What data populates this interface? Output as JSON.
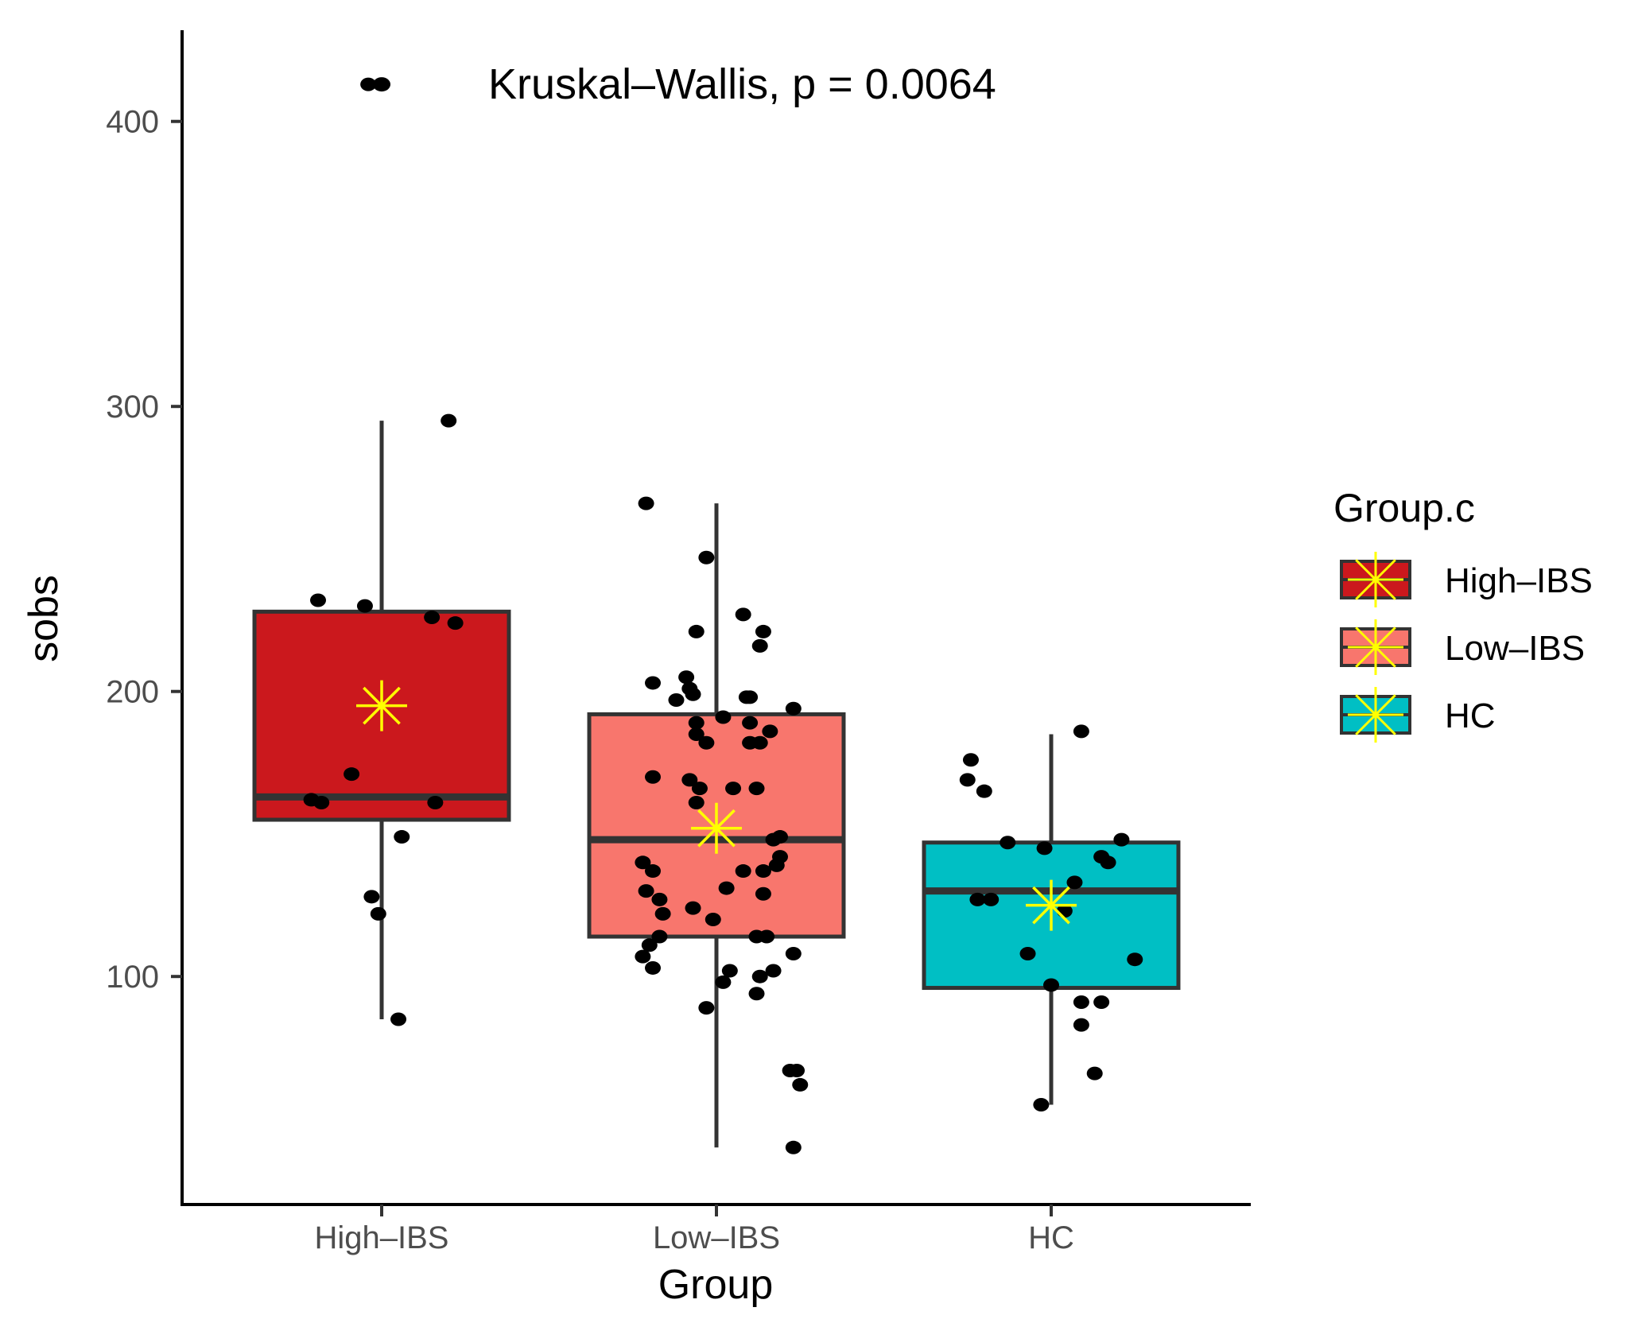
{
  "chart_data": {
    "type": "box",
    "annotation": "Kruskal–Wallis, p = 0.0064",
    "xlabel": "Group",
    "ylabel": "sobs",
    "categories": [
      "High–IBS",
      "Low–IBS",
      "HC"
    ],
    "yticks": [
      100,
      200,
      300,
      400
    ],
    "ylim": [
      20,
      432
    ],
    "legend": {
      "title": "Group.c",
      "position": "right",
      "entries": [
        "High–IBS",
        "Low–IBS",
        "HC"
      ]
    },
    "colors": {
      "High–IBS": "#cb181d",
      "Low–IBS": "#f8766d",
      "HC": "#00bfc4",
      "mean_marker": "#ffff00",
      "box_line": "#333333",
      "points": "#000000"
    },
    "boxes": [
      {
        "group": "High–IBS",
        "whisker_low": 85,
        "q1": 155,
        "median": 163,
        "q3": 228,
        "whisker_high": 295,
        "mean": 195,
        "outliers": [
          413
        ],
        "points": [
          [
            -0.04,
            413
          ],
          [
            0.2,
            295
          ],
          [
            -0.19,
            232
          ],
          [
            -0.05,
            230
          ],
          [
            0.15,
            226
          ],
          [
            0.22,
            224
          ],
          [
            -0.09,
            171
          ],
          [
            -0.21,
            162
          ],
          [
            -0.18,
            161
          ],
          [
            0.16,
            161
          ],
          [
            0.06,
            149
          ],
          [
            -0.03,
            128
          ],
          [
            -0.01,
            122
          ],
          [
            0.05,
            85
          ]
        ]
      },
      {
        "group": "Low–IBS",
        "whisker_low": 40,
        "q1": 114,
        "median": 148,
        "q3": 192,
        "whisker_high": 266,
        "mean": 152,
        "outliers": [],
        "points": [
          [
            -0.21,
            266
          ],
          [
            -0.03,
            247
          ],
          [
            0.08,
            227
          ],
          [
            -0.06,
            221
          ],
          [
            0.14,
            221
          ],
          [
            0.13,
            216
          ],
          [
            -0.09,
            205
          ],
          [
            -0.19,
            203
          ],
          [
            -0.08,
            201
          ],
          [
            -0.07,
            199
          ],
          [
            0.09,
            198
          ],
          [
            0.1,
            198
          ],
          [
            -0.12,
            197
          ],
          [
            0.23,
            194
          ],
          [
            0.02,
            191
          ],
          [
            -0.06,
            189
          ],
          [
            0.1,
            189
          ],
          [
            0.16,
            186
          ],
          [
            -0.06,
            185
          ],
          [
            -0.03,
            182
          ],
          [
            0.1,
            182
          ],
          [
            0.13,
            182
          ],
          [
            -0.19,
            170
          ],
          [
            -0.08,
            169
          ],
          [
            -0.05,
            166
          ],
          [
            0.05,
            166
          ],
          [
            0.12,
            166
          ],
          [
            -0.06,
            161
          ],
          [
            0.19,
            149
          ],
          [
            0.17,
            148
          ],
          [
            0.19,
            142
          ],
          [
            -0.22,
            140
          ],
          [
            0.18,
            139
          ],
          [
            -0.19,
            137
          ],
          [
            0.08,
            137
          ],
          [
            0.14,
            137
          ],
          [
            0.03,
            131
          ],
          [
            -0.21,
            130
          ],
          [
            0.14,
            129
          ],
          [
            -0.17,
            127
          ],
          [
            -0.07,
            124
          ],
          [
            -0.16,
            122
          ],
          [
            -0.01,
            120
          ],
          [
            0.12,
            114
          ],
          [
            -0.17,
            114
          ],
          [
            0.15,
            114
          ],
          [
            -0.2,
            111
          ],
          [
            0.23,
            108
          ],
          [
            -0.22,
            107
          ],
          [
            -0.19,
            103
          ],
          [
            0.04,
            102
          ],
          [
            0.17,
            102
          ],
          [
            0.13,
            100
          ],
          [
            0.02,
            98
          ],
          [
            0.12,
            94
          ],
          [
            -0.03,
            89
          ],
          [
            0.22,
            67
          ],
          [
            0.24,
            67
          ],
          [
            0.25,
            62
          ],
          [
            0.23,
            40
          ]
        ]
      },
      {
        "group": "HC",
        "whisker_low": 55,
        "q1": 96,
        "median": 130,
        "q3": 147,
        "whisker_high": 185,
        "mean": 125,
        "outliers": [],
        "points": [
          [
            0.09,
            186
          ],
          [
            -0.24,
            176
          ],
          [
            -0.25,
            169
          ],
          [
            -0.2,
            165
          ],
          [
            -0.13,
            147
          ],
          [
            0.21,
            148
          ],
          [
            -0.02,
            145
          ],
          [
            0.15,
            142
          ],
          [
            0.17,
            140
          ],
          [
            0.07,
            133
          ],
          [
            -0.18,
            127
          ],
          [
            -0.22,
            127
          ],
          [
            0.04,
            123
          ],
          [
            -0.07,
            108
          ],
          [
            0.25,
            106
          ],
          [
            0.0,
            97
          ],
          [
            0.15,
            91
          ],
          [
            0.09,
            91
          ],
          [
            0.09,
            83
          ],
          [
            0.13,
            66
          ],
          [
            -0.03,
            55
          ]
        ]
      }
    ]
  }
}
